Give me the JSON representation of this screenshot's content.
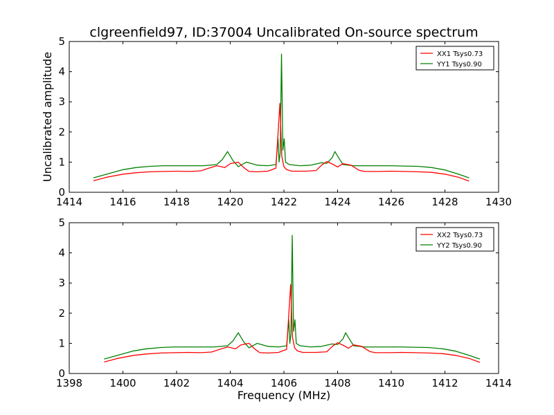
{
  "figure": {
    "title": "clgreenfield97, ID:37004 Uncalibrated On-source spectrum",
    "xlabel": "Frequency (MHz)",
    "ylabel": "Uncalibrated amplitude"
  },
  "chart_data": [
    {
      "type": "line",
      "xlim": [
        1414,
        1430
      ],
      "ylim": [
        0,
        5
      ],
      "xticks": [
        "1414",
        "1416",
        "1418",
        "1420",
        "1422",
        "1424",
        "1426",
        "1428",
        "1430"
      ],
      "yticks": [
        "0",
        "1",
        "2",
        "3",
        "4",
        "5"
      ],
      "legend_position": "top-right",
      "series": [
        {
          "name": "XX1 Tsys0.73",
          "color": "#ff0000",
          "x": [
            1414.9,
            1415.4,
            1416.0,
            1416.5,
            1417.0,
            1417.5,
            1418.0,
            1418.5,
            1418.9,
            1419.2,
            1419.5,
            1419.8,
            1420.0,
            1420.3,
            1420.5,
            1420.7,
            1421.0,
            1421.4,
            1421.7,
            1421.85,
            1421.92,
            1422.0,
            1422.1,
            1422.3,
            1422.8,
            1423.2,
            1423.4,
            1423.6,
            1423.8,
            1424.0,
            1424.2,
            1424.5,
            1424.8,
            1425.0,
            1425.5,
            1426.0,
            1426.5,
            1427.0,
            1427.5,
            1428.0,
            1428.5,
            1428.9
          ],
          "y": [
            0.38,
            0.5,
            0.6,
            0.65,
            0.68,
            0.69,
            0.7,
            0.69,
            0.71,
            0.8,
            0.88,
            0.82,
            0.95,
            1.0,
            0.82,
            0.69,
            0.68,
            0.7,
            0.8,
            2.95,
            1.2,
            0.85,
            0.75,
            0.7,
            0.7,
            0.72,
            0.9,
            1.02,
            0.94,
            0.84,
            0.95,
            0.9,
            0.73,
            0.69,
            0.69,
            0.7,
            0.69,
            0.68,
            0.66,
            0.6,
            0.5,
            0.37
          ]
        },
        {
          "name": "YY1 Tsys0.90",
          "color": "#008000",
          "x": [
            1414.9,
            1415.4,
            1416.0,
            1416.5,
            1417.0,
            1417.5,
            1418.0,
            1418.5,
            1419.0,
            1419.5,
            1419.7,
            1419.9,
            1420.1,
            1420.3,
            1420.6,
            1421.0,
            1421.4,
            1421.7,
            1421.78,
            1421.82,
            1421.86,
            1421.91,
            1421.96,
            1422.01,
            1422.06,
            1422.2,
            1422.6,
            1423.0,
            1423.4,
            1423.6,
            1423.8,
            1423.9,
            1424.0,
            1424.2,
            1424.6,
            1425.0,
            1425.5,
            1426.0,
            1426.5,
            1427.0,
            1427.5,
            1428.0,
            1428.5,
            1428.9
          ],
          "y": [
            0.48,
            0.6,
            0.75,
            0.82,
            0.86,
            0.88,
            0.88,
            0.88,
            0.88,
            0.92,
            1.08,
            1.35,
            1.05,
            0.85,
            1.0,
            0.9,
            0.88,
            0.92,
            1.78,
            1.0,
            1.3,
            4.58,
            1.4,
            1.78,
            1.0,
            0.92,
            0.88,
            0.9,
            0.98,
            0.96,
            1.15,
            1.35,
            1.2,
            0.92,
            0.88,
            0.88,
            0.88,
            0.88,
            0.87,
            0.86,
            0.82,
            0.74,
            0.6,
            0.48
          ]
        }
      ]
    },
    {
      "type": "line",
      "xlim": [
        1398,
        1414
      ],
      "ylim": [
        0,
        5
      ],
      "xticks": [
        "1398",
        "1400",
        "1402",
        "1404",
        "1406",
        "1408",
        "1410",
        "1412",
        "1414"
      ],
      "yticks": [
        "0",
        "1",
        "2",
        "3",
        "4",
        "5"
      ],
      "legend_position": "top-right",
      "series": [
        {
          "name": "XX2 Tsys0.73",
          "color": "#ff0000",
          "x": [
            1399.3,
            1399.8,
            1400.4,
            1400.9,
            1401.4,
            1401.9,
            1402.4,
            1402.9,
            1403.3,
            1403.6,
            1403.9,
            1404.2,
            1404.4,
            1404.7,
            1404.9,
            1405.1,
            1405.4,
            1405.8,
            1406.1,
            1406.25,
            1406.32,
            1406.4,
            1406.5,
            1406.7,
            1407.2,
            1407.6,
            1407.8,
            1408.0,
            1408.2,
            1408.4,
            1408.6,
            1408.9,
            1409.2,
            1409.4,
            1409.9,
            1410.4,
            1410.9,
            1411.4,
            1411.9,
            1412.4,
            1412.9,
            1413.3
          ],
          "y": [
            0.38,
            0.5,
            0.6,
            0.65,
            0.68,
            0.69,
            0.7,
            0.69,
            0.71,
            0.8,
            0.88,
            0.82,
            0.95,
            1.0,
            0.82,
            0.69,
            0.68,
            0.7,
            0.8,
            2.95,
            1.2,
            0.85,
            0.75,
            0.7,
            0.7,
            0.72,
            0.9,
            1.02,
            0.94,
            0.84,
            0.95,
            0.9,
            0.73,
            0.69,
            0.69,
            0.7,
            0.69,
            0.68,
            0.66,
            0.6,
            0.5,
            0.37
          ]
        },
        {
          "name": "YY2 Tsys0.90",
          "color": "#008000",
          "x": [
            1399.3,
            1399.8,
            1400.4,
            1400.9,
            1401.4,
            1401.9,
            1402.4,
            1402.9,
            1403.4,
            1403.9,
            1404.1,
            1404.3,
            1404.5,
            1404.7,
            1405.0,
            1405.4,
            1405.8,
            1406.1,
            1406.18,
            1406.22,
            1406.26,
            1406.31,
            1406.36,
            1406.41,
            1406.46,
            1406.6,
            1407.0,
            1407.4,
            1407.8,
            1408.0,
            1408.2,
            1408.3,
            1408.4,
            1408.6,
            1409.0,
            1409.4,
            1409.9,
            1410.4,
            1410.9,
            1411.4,
            1411.9,
            1412.4,
            1412.9,
            1413.3
          ],
          "y": [
            0.48,
            0.6,
            0.75,
            0.82,
            0.86,
            0.88,
            0.88,
            0.88,
            0.88,
            0.92,
            1.08,
            1.35,
            1.05,
            0.85,
            1.0,
            0.9,
            0.88,
            0.92,
            1.78,
            1.0,
            1.3,
            4.58,
            1.4,
            1.78,
            1.0,
            0.92,
            0.88,
            0.9,
            0.98,
            0.96,
            1.15,
            1.35,
            1.2,
            0.92,
            0.88,
            0.88,
            0.88,
            0.88,
            0.87,
            0.86,
            0.82,
            0.74,
            0.6,
            0.48
          ]
        }
      ]
    }
  ]
}
